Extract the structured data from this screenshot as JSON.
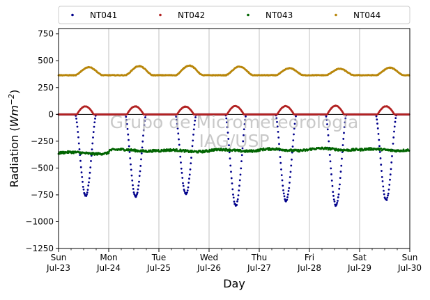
{
  "chart_data": {
    "type": "scatter",
    "xlabel": "Day",
    "ylabel_main": "Radiation (",
    "ylabel_unit": "Wm",
    "ylabel_exp": "−2",
    "ylabel_close": ")",
    "ylim": [
      -1250,
      800
    ],
    "yticks": [
      -1250,
      -1000,
      -750,
      -500,
      -250,
      0,
      250,
      500,
      750
    ],
    "ytick_labels": [
      "−1250",
      "−1000",
      "−750",
      "−500",
      "−250",
      "0",
      "250",
      "500",
      "750"
    ],
    "xlim": [
      "2017-07-23",
      "2017-07-30"
    ],
    "xticks": [
      "2017-07-23",
      "2017-07-24",
      "2017-07-25",
      "2017-07-26",
      "2017-07-27",
      "2017-07-28",
      "2017-07-29",
      "2017-07-30"
    ],
    "xtick_labels": [
      [
        "Sun",
        "Jul-23"
      ],
      [
        "Mon",
        "Jul-24"
      ],
      [
        "Tue",
        "Jul-25"
      ],
      [
        "Wed",
        "Jul-26"
      ],
      [
        "Thu",
        "Jul-27"
      ],
      [
        "Fri",
        "Jul-28"
      ],
      [
        "Sat",
        "Jul-29"
      ],
      [
        "Sun",
        "Jul-30"
      ]
    ],
    "grid": "vertical",
    "legend_placement": "top",
    "watermark": [
      "Grupo de Micrometeorologia",
      "IAG/USP"
    ],
    "series": [
      {
        "name": "NT041",
        "color": "#00008b",
        "baseline": 0,
        "daily_min": [
          -760,
          -770,
          -745,
          -850,
          -810,
          -850,
          -800
        ],
        "peak_hour": [
          13.0,
          12.9,
          12.9,
          12.8,
          12.8,
          12.7,
          12.7
        ],
        "half_width_hours": 5.0
      },
      {
        "name": "NT042",
        "color": "#b22222",
        "baseline": 0,
        "daily_max": [
          75,
          75,
          72,
          78,
          77,
          80,
          75
        ],
        "peak_hour": [
          12.8,
          12.7,
          12.7,
          12.6,
          12.6,
          12.5,
          12.6
        ],
        "half_width_hours": 4.0
      },
      {
        "name": "NT043",
        "color": "#006400",
        "night_level": -370,
        "day_level": -330,
        "daily_values": [
          -360,
          -335,
          -340,
          -335,
          -330,
          -325,
          -330
        ]
      },
      {
        "name": "NT044",
        "color": "#b8860b",
        "night_level": 365,
        "daily_max": [
          440,
          450,
          455,
          445,
          430,
          425,
          435
        ],
        "peak_hour": [
          14.5,
          14.5,
          14.5,
          14.5,
          14.5,
          14.5,
          14.5
        ]
      }
    ]
  }
}
